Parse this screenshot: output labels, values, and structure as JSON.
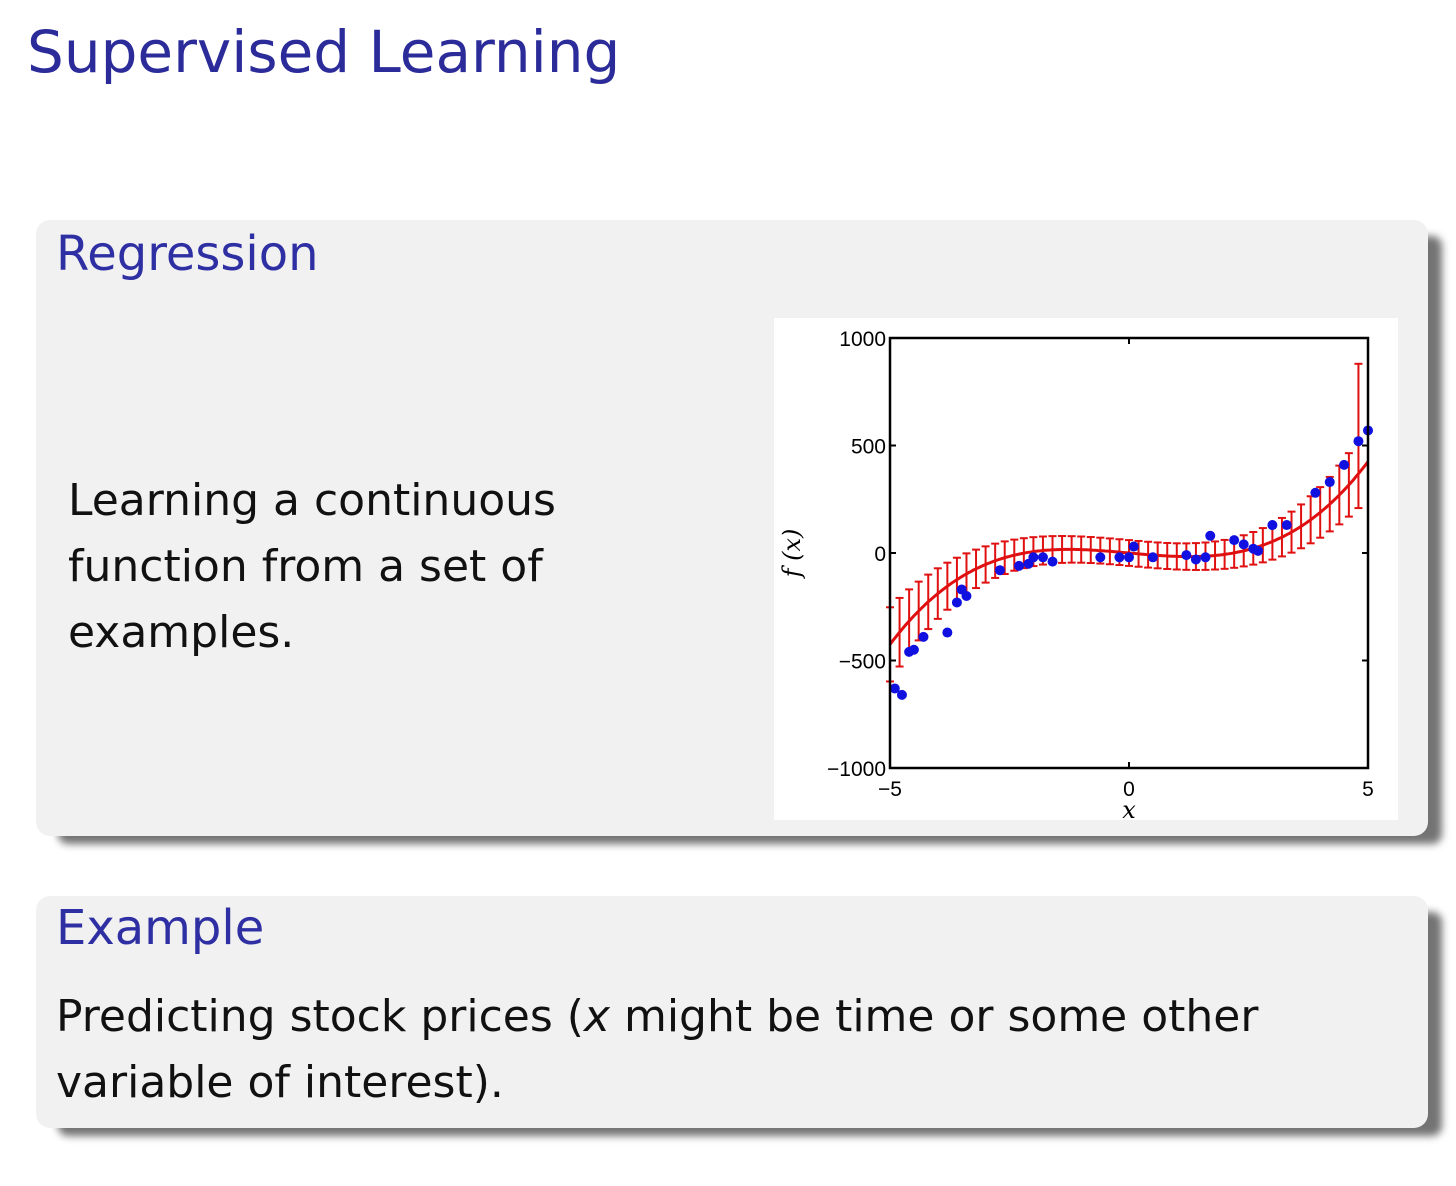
{
  "frame": {
    "title": "Supervised Learning"
  },
  "regression_block": {
    "title": "Regression",
    "text": "Learning a continuous function from a set of examples."
  },
  "example_block": {
    "title": "Example",
    "text": "Predicting stock prices (x might be time or some other variable of interest)."
  },
  "colors": {
    "title": "#2b2b9a",
    "fit_line": "#e01010",
    "points": "#1010e0",
    "block_bg": "#f1f1f1"
  },
  "chart_data": {
    "type": "scatter",
    "xlabel": "x",
    "ylabel": "f (x)",
    "xlim": [
      -5,
      5
    ],
    "ylim": [
      -1000,
      1000
    ],
    "xticks": [
      -5,
      0,
      5
    ],
    "yticks": [
      -1000,
      -500,
      0,
      500,
      1000
    ],
    "grid": false,
    "fit_series": {
      "description": "red mean function with red error bars",
      "error_x": [
        -5,
        -4.8,
        -4.6,
        -4.4,
        -4.2,
        -4,
        -3.8,
        -3.6,
        -3.4,
        -3.2,
        -3,
        -2.8,
        -2.6,
        -2.4,
        -2.2,
        -2,
        -1.8,
        -1.6,
        -1.4,
        -1.2,
        -1,
        -0.8,
        -0.6,
        -0.4,
        -0.2,
        0,
        0.2,
        0.4,
        0.6,
        0.8,
        1,
        1.2,
        1.4,
        1.6,
        1.8,
        2,
        2.2,
        2.4,
        2.6,
        2.8,
        3,
        3.2,
        3.4,
        3.6,
        3.8,
        4,
        4.2,
        4.4,
        4.6,
        4.8
      ],
      "upper_last": 880
    },
    "points": [
      {
        "x": -4.9,
        "y": -630
      },
      {
        "x": -4.75,
        "y": -660
      },
      {
        "x": -4.6,
        "y": -460
      },
      {
        "x": -4.5,
        "y": -450
      },
      {
        "x": -4.3,
        "y": -390
      },
      {
        "x": -3.8,
        "y": -370
      },
      {
        "x": -3.6,
        "y": -230
      },
      {
        "x": -3.5,
        "y": -170
      },
      {
        "x": -3.4,
        "y": -200
      },
      {
        "x": -2.7,
        "y": -80
      },
      {
        "x": -2.3,
        "y": -60
      },
      {
        "x": -2.1,
        "y": -50
      },
      {
        "x": -2.0,
        "y": -20
      },
      {
        "x": -1.8,
        "y": -20
      },
      {
        "x": -1.6,
        "y": -40
      },
      {
        "x": -0.6,
        "y": -20
      },
      {
        "x": -0.2,
        "y": -20
      },
      {
        "x": 0.0,
        "y": -20
      },
      {
        "x": 0.1,
        "y": 30
      },
      {
        "x": 0.5,
        "y": -20
      },
      {
        "x": 1.2,
        "y": -10
      },
      {
        "x": 1.4,
        "y": -30
      },
      {
        "x": 1.6,
        "y": -20
      },
      {
        "x": 1.7,
        "y": 80
      },
      {
        "x": 2.2,
        "y": 60
      },
      {
        "x": 2.4,
        "y": 40
      },
      {
        "x": 2.6,
        "y": 20
      },
      {
        "x": 2.7,
        "y": 10
      },
      {
        "x": 3.0,
        "y": 130
      },
      {
        "x": 3.3,
        "y": 130
      },
      {
        "x": 3.9,
        "y": 280
      },
      {
        "x": 4.2,
        "y": 330
      },
      {
        "x": 4.5,
        "y": 410
      },
      {
        "x": 4.8,
        "y": 520
      },
      {
        "x": 5.0,
        "y": 570
      }
    ]
  }
}
